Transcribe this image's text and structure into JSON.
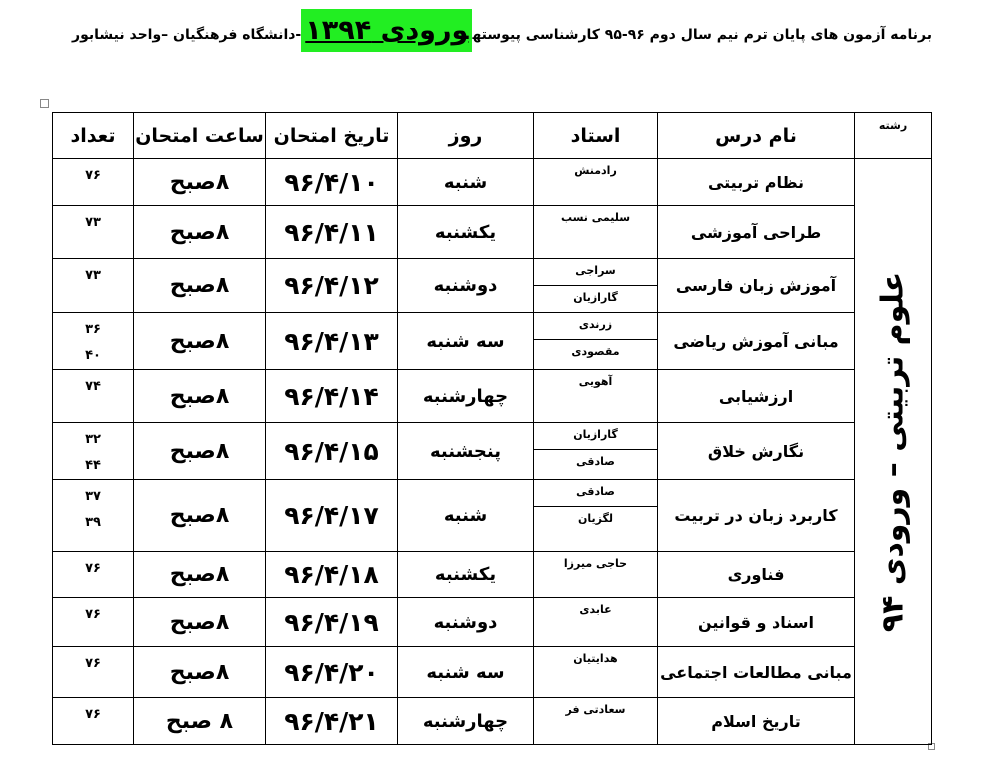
{
  "header": {
    "title_before": "برنامه آزمون های پایان ترم نیم سال دوم ۹۶-۹۵ کارشناسی پیوسته",
    "title_highlight": "ورودی ۱۳۹۴",
    "title_after": "-دانشگاه فرهنگیان –واحد نیشابور"
  },
  "table": {
    "columns": [
      "رشته",
      "نام درس",
      "استاد",
      "روز",
      "تاریخ امتحان",
      "ساعت امتحان",
      "تعداد"
    ],
    "field": "علوم تربیتی – ورودی ۹۴",
    "rows": [
      {
        "course": "نظام تربیتی",
        "teachers": [
          "رادمنش"
        ],
        "day": "شنبه",
        "date": "۹۶/۴/۱۰",
        "time": "۸صبح",
        "counts": [
          "۷۶"
        ]
      },
      {
        "course": "طراحی آموزشی",
        "teachers": [
          "سلیمی نسب"
        ],
        "day": "یکشنبه",
        "date": "۹۶/۴/۱۱",
        "time": "۸صبح",
        "counts": [
          "۷۳"
        ]
      },
      {
        "course": "آموزش زبان فارسی",
        "teachers": [
          "سراجی",
          "گارازیان"
        ],
        "day": "دوشنبه",
        "date": "۹۶/۴/۱۲",
        "time": "۸صبح",
        "counts": [
          "۷۳"
        ]
      },
      {
        "course": "مبانی آموزش ریاضی",
        "teachers": [
          "زرندی",
          "مقصودی"
        ],
        "day": "سه شنبه",
        "date": "۹۶/۴/۱۳",
        "time": "۸صبح",
        "counts": [
          "۳۶",
          "۴۰"
        ]
      },
      {
        "course": "ارزشیابی",
        "teachers": [
          "آهویی"
        ],
        "day": "چهارشنبه",
        "date": "۹۶/۴/۱۴",
        "time": "۸صبح",
        "counts": [
          "۷۴"
        ]
      },
      {
        "course": "نگارش خلاق",
        "teachers": [
          "گارازیان",
          "صادقی"
        ],
        "day": "پنجشنبه",
        "date": "۹۶/۴/۱۵",
        "time": "۸صبح",
        "counts": [
          "۳۲",
          "۴۴"
        ]
      },
      {
        "course": "کاربرد زبان در تربیت",
        "teachers": [
          "صادقی",
          "لگزیان"
        ],
        "day": "شنبه",
        "date": "۹۶/۴/۱۷",
        "time": "۸صبح",
        "counts": [
          "۳۷",
          "۳۹"
        ]
      },
      {
        "course": "فناوری",
        "teachers": [
          "حاجی میرزا"
        ],
        "day": "یکشنبه",
        "date": "۹۶/۴/۱۸",
        "time": "۸صبح",
        "counts": [
          "۷۶"
        ]
      },
      {
        "course": "اسناد و قوانین",
        "teachers": [
          "عابدی"
        ],
        "day": "دوشنبه",
        "date": "۹۶/۴/۱۹",
        "time": "۸صبح",
        "counts": [
          "۷۶"
        ]
      },
      {
        "course": "مبانی مطالعات اجتماعی",
        "teachers": [
          "هدایتیان"
        ],
        "day": "سه شنبه",
        "date": "۹۶/۴/۲۰",
        "time": "۸صبح",
        "counts": [
          "۷۶"
        ]
      },
      {
        "course": "تاریخ اسلام",
        "teachers": [
          "سعادتی فر"
        ],
        "day": "چهارشنبه",
        "date": "۹۶/۴/۲۱",
        "time": "۸ صبح",
        "counts": [
          "۷۶"
        ]
      }
    ]
  }
}
